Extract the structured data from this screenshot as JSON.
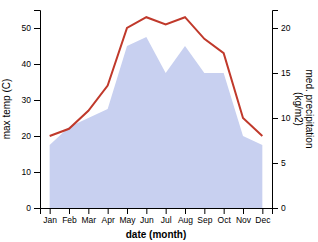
{
  "chart_data": {
    "type": "line",
    "categories": [
      "Jan",
      "Feb",
      "Mar",
      "Apr",
      "May",
      "Jun",
      "Jul",
      "Aug",
      "Sep",
      "Oct",
      "Nov",
      "Dec"
    ],
    "series": [
      {
        "type": "area",
        "axis": "y2",
        "color": "#c8d0f0",
        "values": [
          7,
          9,
          10,
          11,
          18,
          19,
          15,
          18,
          15,
          15,
          8,
          7
        ]
      },
      {
        "type": "line",
        "color": "#c0392b",
        "values": [
          20,
          22,
          27,
          34,
          50,
          53,
          51,
          53,
          47,
          43,
          25,
          20
        ]
      }
    ],
    "xlabel": "date (month)",
    "ylabel": "max temp (C)",
    "y2label": "med. precipitation\n(kg/m2)",
    "ylim": [
      0,
      55
    ],
    "yticks": [
      0,
      10,
      20,
      30,
      40,
      50
    ],
    "y2lim": [
      0,
      22
    ],
    "y2ticks": [
      0,
      5,
      10,
      15,
      20
    ]
  }
}
